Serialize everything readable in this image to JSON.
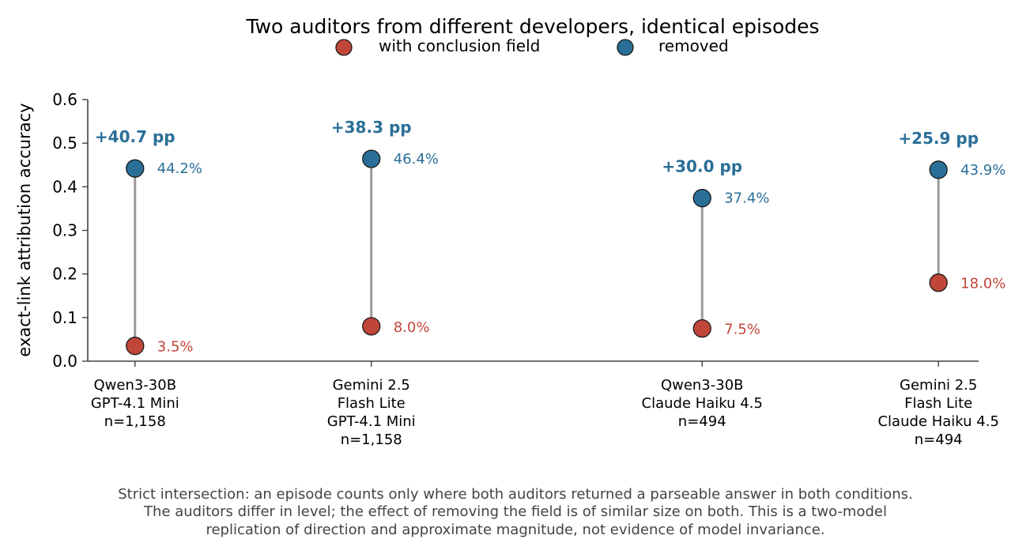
{
  "chart_data": {
    "type": "dumbbell",
    "title": "Two auditors from different developers, identical episodes",
    "ylabel": "exact-link attribution accuracy",
    "xlabel": "",
    "ylim": [
      0,
      0.6
    ],
    "yticks": [
      0.0,
      0.1,
      0.2,
      0.3,
      0.4,
      0.5,
      0.6
    ],
    "ytick_labels": [
      "0.0",
      "0.1",
      "0.2",
      "0.3",
      "0.4",
      "0.5",
      "0.6"
    ],
    "legend_position": "top-center",
    "grid": false,
    "colors": {
      "with": "#c0463a",
      "removed": "#2a6f97",
      "connector": "#9a9a9a",
      "axis": "#444444"
    },
    "series": [
      {
        "name": "with conclusion field",
        "values": [
          0.035,
          0.08,
          0.075,
          0.18
        ],
        "labels": [
          "3.5%",
          "8.0%",
          "7.5%",
          "18.0%"
        ]
      },
      {
        "name": "removed",
        "values": [
          0.442,
          0.464,
          0.374,
          0.439
        ],
        "labels": [
          "44.2%",
          "46.4%",
          "37.4%",
          "43.9%"
        ]
      }
    ],
    "groups": [
      {
        "x": 0.0,
        "category_lines": [
          "Qwen3-30B",
          "GPT-4.1 Mini",
          "n=1,158"
        ],
        "difference_label": "+40.7 pp"
      },
      {
        "x": 1.0,
        "category_lines": [
          "Gemini 2.5",
          "Flash Lite",
          "GPT-4.1 Mini",
          "n=1,158"
        ],
        "difference_label": "+38.3 pp"
      },
      {
        "x": 2.4,
        "category_lines": [
          "Qwen3-30B",
          "Claude Haiku 4.5",
          "n=494"
        ],
        "difference_label": "+30.0 pp"
      },
      {
        "x": 3.4,
        "category_lines": [
          "Gemini 2.5",
          "Flash Lite",
          "Claude Haiku 4.5",
          "n=494"
        ],
        "difference_label": "+25.9 pp"
      }
    ],
    "xlim": [
      -0.2,
      3.57
    ]
  },
  "footnote": [
    "Strict intersection: an episode counts only where both auditors returned a parseable answer in both conditions.",
    "The auditors differ in level; the effect of removing the field is of similar size on both. This is a two-model",
    "replication of direction and approximate magnitude, not evidence of model invariance."
  ]
}
